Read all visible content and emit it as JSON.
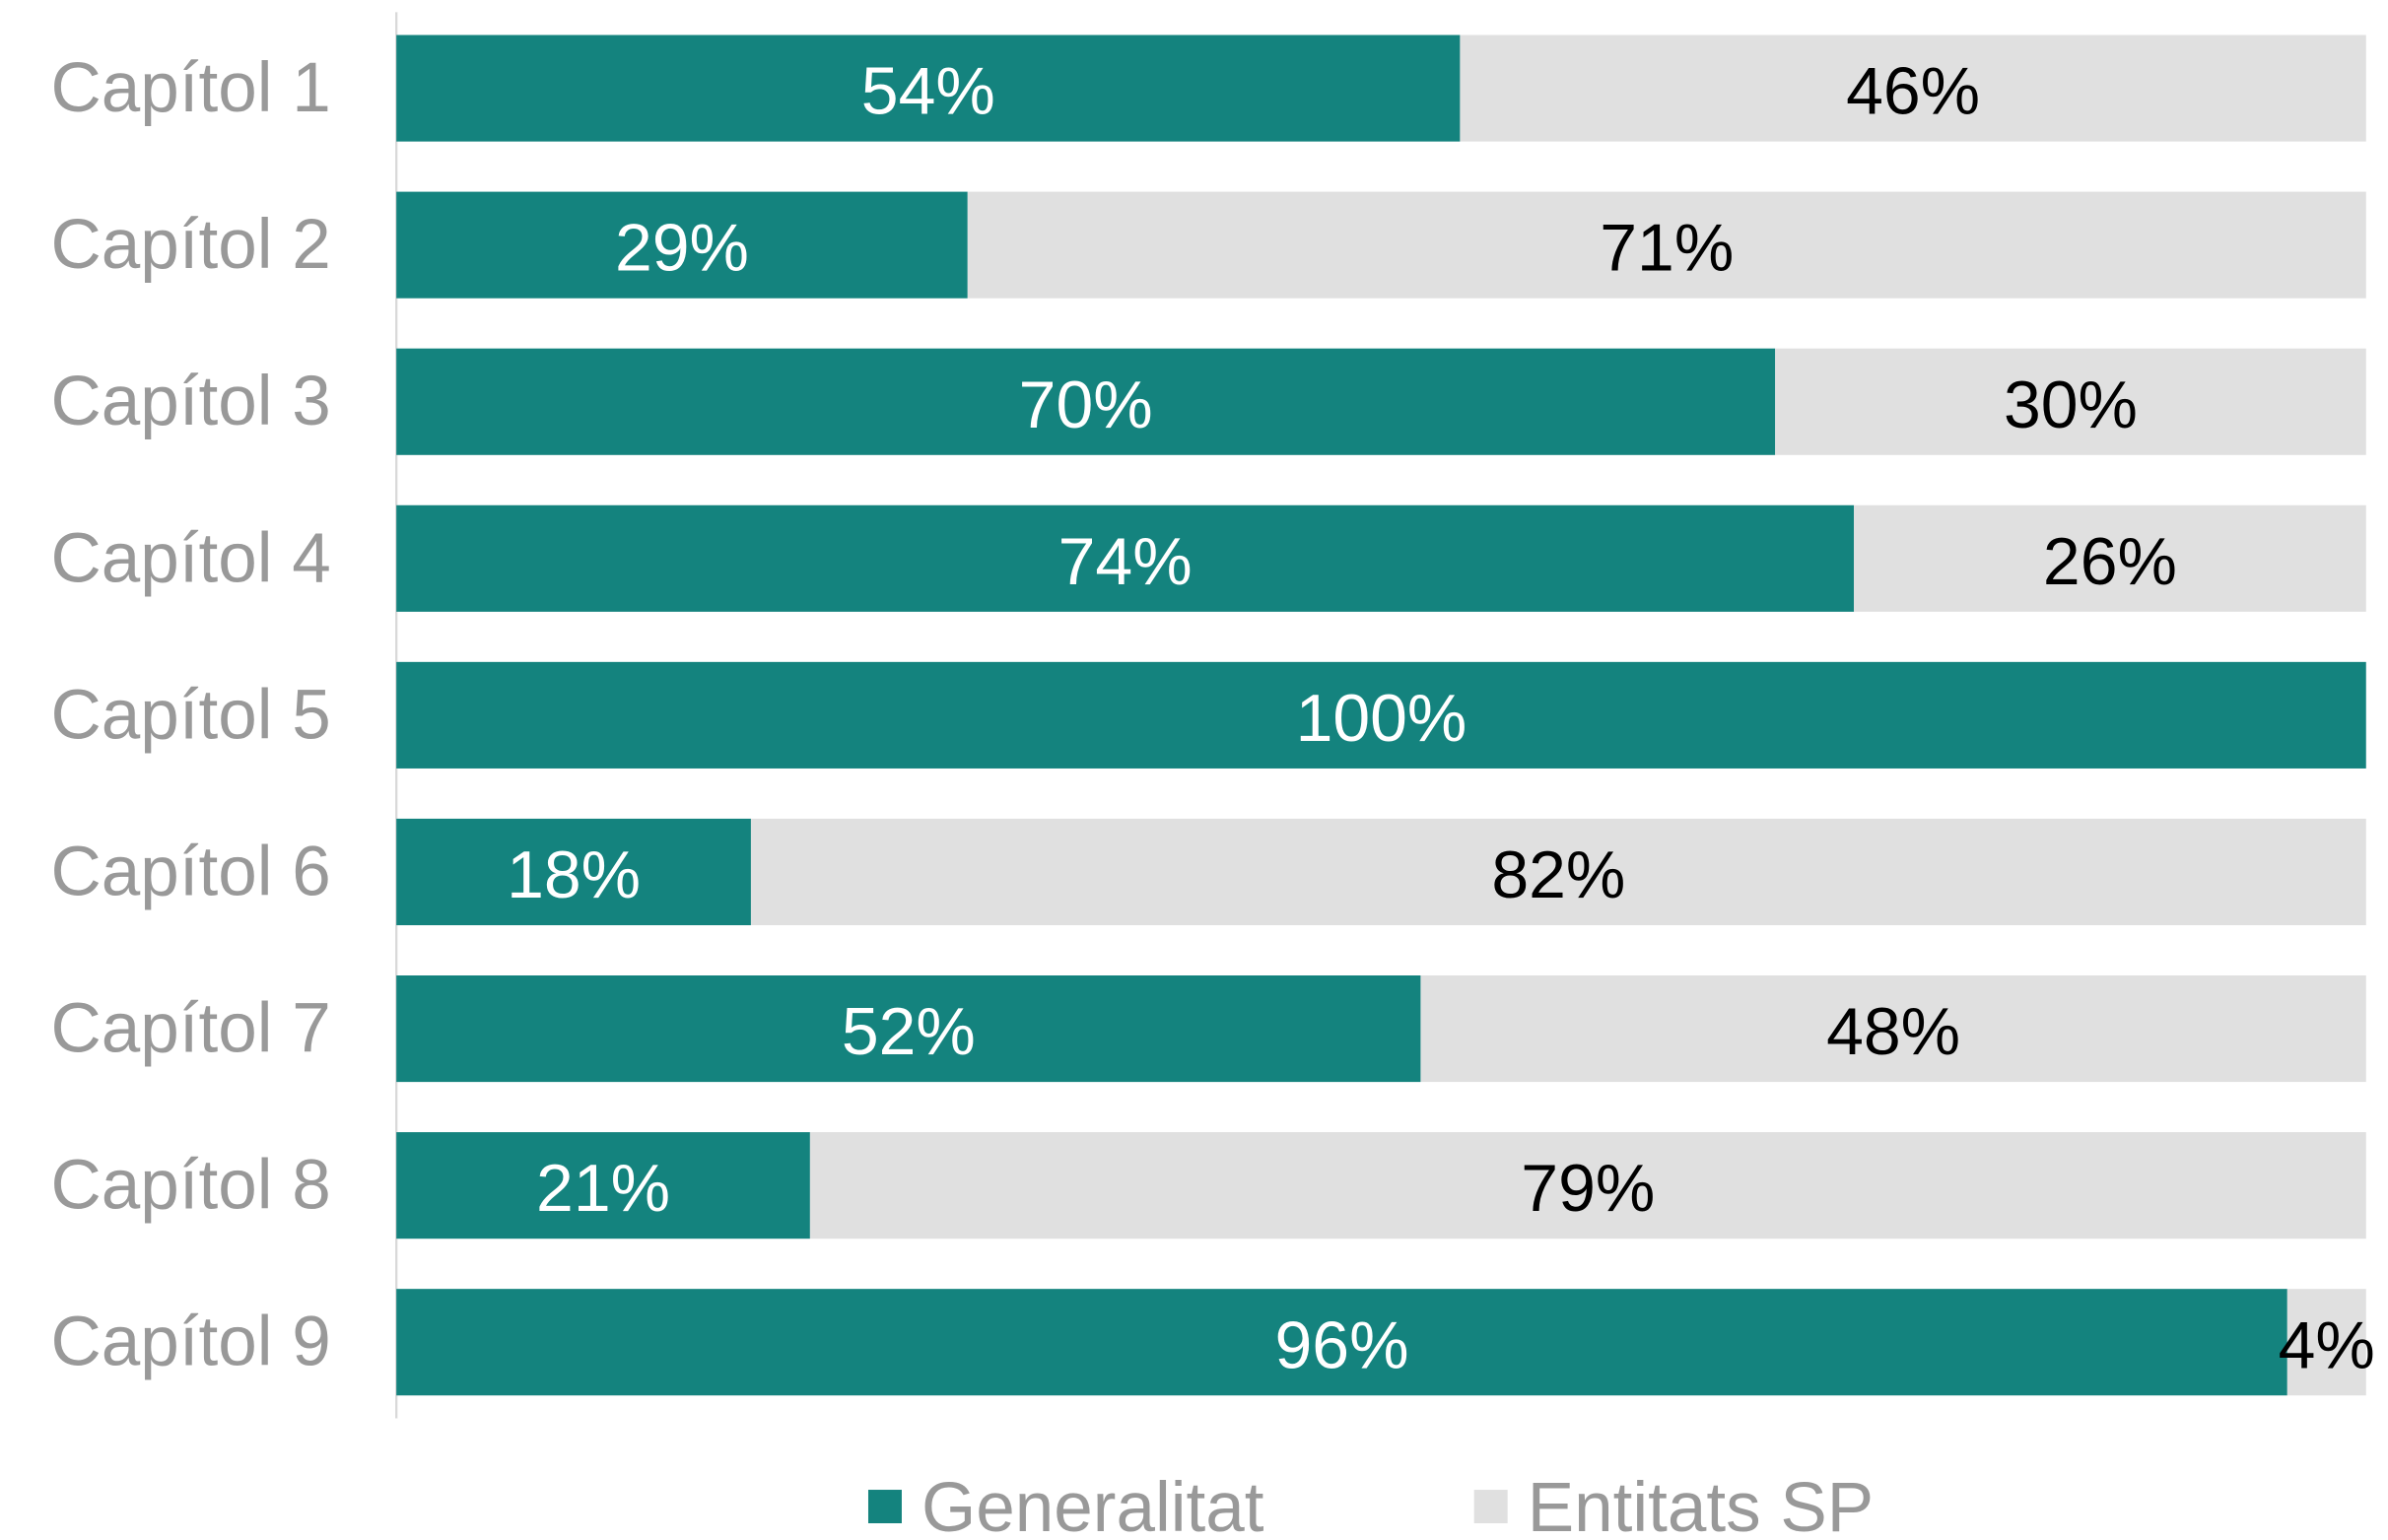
{
  "chart_data": {
    "type": "stacked-bar-horizontal",
    "categories": [
      "Capítol 1",
      "Capítol 2",
      "Capítol 3",
      "Capítol 4",
      "Capítol 5",
      "Capítol 6",
      "Capítol 7",
      "Capítol 8",
      "Capítol 9"
    ],
    "series": [
      {
        "name": "Generalitat",
        "color": "#14837e",
        "values": [
          54,
          29,
          70,
          74,
          100,
          18,
          52,
          21,
          96
        ],
        "value_labels": [
          "54%",
          "29%",
          "70%",
          "74%",
          "100%",
          "18%",
          "52%",
          "21%",
          "96%"
        ],
        "label_color": "#ffffff"
      },
      {
        "name": "Entitats SP",
        "color": "#e0e0e0",
        "values": [
          46,
          71,
          30,
          26,
          null,
          82,
          48,
          79,
          4
        ],
        "value_labels": [
          "46%",
          "71%",
          "30%",
          "26%",
          null,
          "82%",
          "48%",
          "79%",
          "4%"
        ],
        "label_color": "#000000"
      }
    ],
    "xlim": [
      0,
      100
    ],
    "legend": "bottom"
  }
}
